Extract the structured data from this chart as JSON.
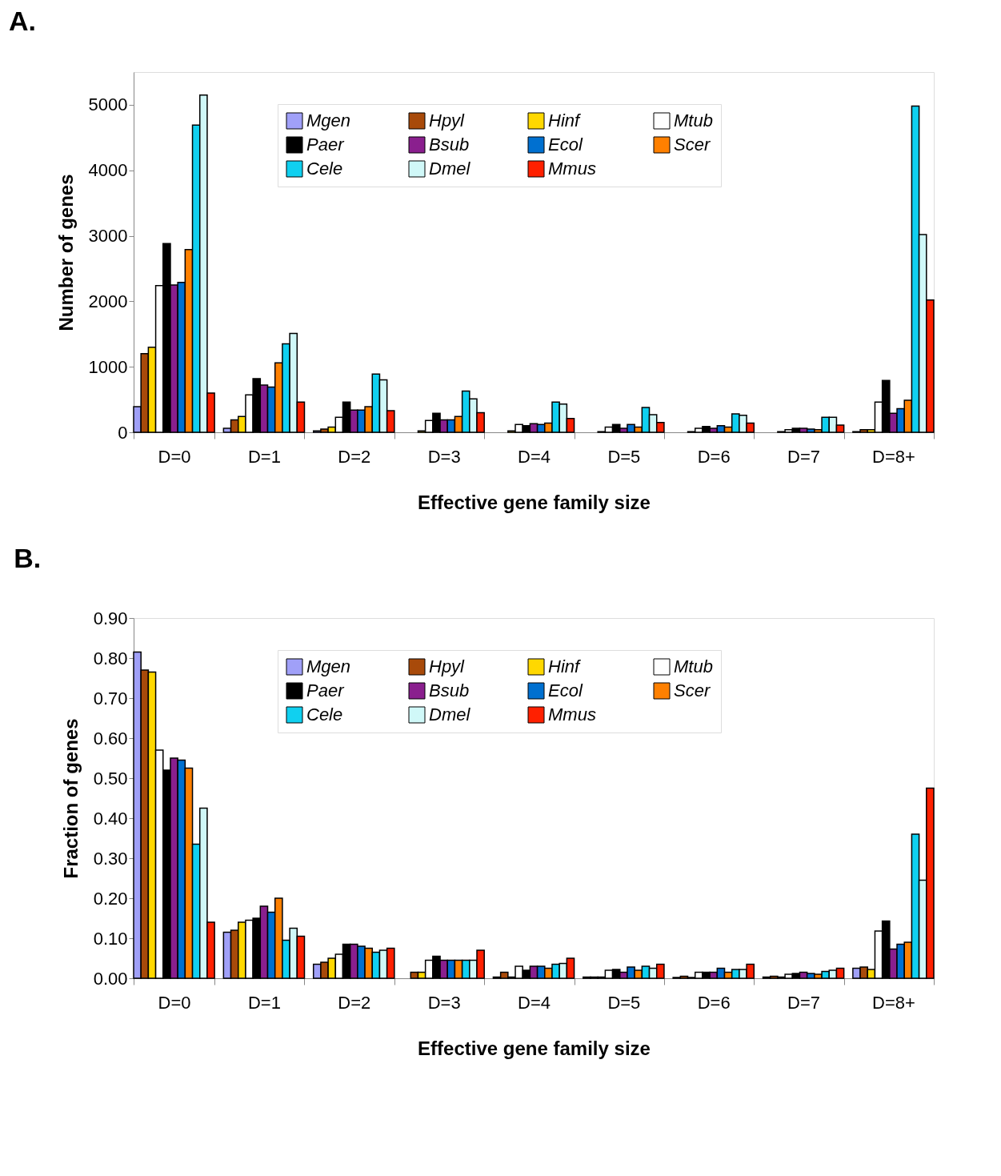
{
  "chart_data": [
    {
      "type": "bar",
      "title": "A.",
      "xlabel": "Effective gene family size",
      "ylabel": "Number of genes",
      "categories": [
        "D=0",
        "D=1",
        "D=2",
        "D=3",
        "D=4",
        "D=5",
        "D=6",
        "D=7",
        "D=8+"
      ],
      "ylim": [
        0,
        5500
      ],
      "yticks": [
        0,
        1000,
        2000,
        3000,
        4000,
        5000
      ],
      "grid": false,
      "legend": "top",
      "series": [
        {
          "name": "Mgen",
          "color": "#a0a0f8",
          "values": [
            390,
            60,
            20,
            0,
            0,
            0,
            0,
            0,
            10
          ]
        },
        {
          "name": "Hpyl",
          "color": "#a84a0a",
          "values": [
            1200,
            190,
            50,
            0,
            0,
            0,
            0,
            0,
            40
          ]
        },
        {
          "name": "Hinf",
          "color": "#ffd800",
          "values": [
            1300,
            240,
            80,
            20,
            20,
            10,
            10,
            10,
            40
          ]
        },
        {
          "name": "Mtub",
          "color": "#ffffff",
          "values": [
            2240,
            570,
            230,
            180,
            120,
            80,
            60,
            40,
            460
          ]
        },
        {
          "name": "Paer",
          "color": "#000000",
          "values": [
            2880,
            820,
            460,
            290,
            100,
            120,
            90,
            60,
            790
          ]
        },
        {
          "name": "Bsub",
          "color": "#8a1f8e",
          "values": [
            2250,
            720,
            340,
            190,
            130,
            60,
            60,
            60,
            290
          ]
        },
        {
          "name": "Ecol",
          "color": "#0070d0",
          "values": [
            2290,
            690,
            340,
            190,
            120,
            120,
            100,
            50,
            360
          ]
        },
        {
          "name": "Scer",
          "color": "#ff8000",
          "values": [
            2790,
            1060,
            390,
            240,
            140,
            80,
            80,
            40,
            490
          ]
        },
        {
          "name": "Cele",
          "color": "#10d0f0",
          "values": [
            4690,
            1350,
            890,
            630,
            460,
            380,
            280,
            230,
            4980
          ]
        },
        {
          "name": "Dmel",
          "color": "#d0f8f8",
          "values": [
            5150,
            1510,
            800,
            510,
            430,
            270,
            260,
            230,
            3020
          ]
        },
        {
          "name": "Mmus",
          "color": "#ff2000",
          "values": [
            600,
            460,
            330,
            300,
            210,
            150,
            140,
            110,
            2020
          ]
        }
      ]
    },
    {
      "type": "bar",
      "title": "B.",
      "xlabel": "Effective gene family size",
      "ylabel": "Fraction of genes",
      "categories": [
        "D=0",
        "D=1",
        "D=2",
        "D=3",
        "D=4",
        "D=5",
        "D=6",
        "D=7",
        "D=8+"
      ],
      "ylim": [
        0,
        0.9
      ],
      "yticks": [
        {
          "value": 0,
          "label": "0.00"
        },
        {
          "value": 0.1,
          "label": "0.10"
        },
        {
          "value": 0.2,
          "label": "0.20"
        },
        {
          "value": 0.3,
          "label": "0.30"
        },
        {
          "value": 0.4,
          "label": "0.40"
        },
        {
          "value": 0.5,
          "label": "0.50"
        },
        {
          "value": 0.6,
          "label": "0.60"
        },
        {
          "value": 0.7,
          "label": "0.70"
        },
        {
          "value": 0.8,
          "label": "0.80"
        },
        {
          "value": 0.9,
          "label": "0.90"
        }
      ],
      "grid": false,
      "legend": "top",
      "series": [
        {
          "name": "Mgen",
          "color": "#a0a0f8",
          "values": [
            0.815,
            0.115,
            0.035,
            0,
            0.003,
            0.003,
            0.002,
            0.003,
            0.025
          ]
        },
        {
          "name": "Hpyl",
          "color": "#a84a0a",
          "values": [
            0.77,
            0.12,
            0.04,
            0.015,
            0.015,
            0.003,
            0.005,
            0.005,
            0.028
          ]
        },
        {
          "name": "Hinf",
          "color": "#ffd800",
          "values": [
            0.765,
            0.14,
            0.05,
            0.015,
            0.003,
            0.003,
            0.002,
            0.003,
            0.022
          ]
        },
        {
          "name": "Mtub",
          "color": "#ffffff",
          "values": [
            0.57,
            0.145,
            0.06,
            0.045,
            0.03,
            0.02,
            0.015,
            0.01,
            0.118
          ]
        },
        {
          "name": "Paer",
          "color": "#000000",
          "values": [
            0.52,
            0.15,
            0.085,
            0.055,
            0.02,
            0.022,
            0.015,
            0.012,
            0.143
          ]
        },
        {
          "name": "Bsub",
          "color": "#8a1f8e",
          "values": [
            0.55,
            0.18,
            0.085,
            0.045,
            0.03,
            0.015,
            0.015,
            0.015,
            0.073
          ]
        },
        {
          "name": "Ecol",
          "color": "#0070d0",
          "values": [
            0.545,
            0.165,
            0.08,
            0.045,
            0.03,
            0.028,
            0.025,
            0.012,
            0.085
          ]
        },
        {
          "name": "Scer",
          "color": "#ff8000",
          "values": [
            0.525,
            0.2,
            0.075,
            0.045,
            0.025,
            0.02,
            0.015,
            0.01,
            0.09
          ]
        },
        {
          "name": "Cele",
          "color": "#10d0f0",
          "values": [
            0.335,
            0.095,
            0.065,
            0.045,
            0.035,
            0.03,
            0.022,
            0.017,
            0.36
          ]
        },
        {
          "name": "Dmel",
          "color": "#d0f8f8",
          "values": [
            0.425,
            0.125,
            0.07,
            0.045,
            0.037,
            0.025,
            0.022,
            0.02,
            0.245
          ]
        },
        {
          "name": "Mmus",
          "color": "#ff2000",
          "values": [
            0.14,
            0.105,
            0.075,
            0.07,
            0.05,
            0.035,
            0.035,
            0.025,
            0.475
          ]
        }
      ]
    }
  ]
}
